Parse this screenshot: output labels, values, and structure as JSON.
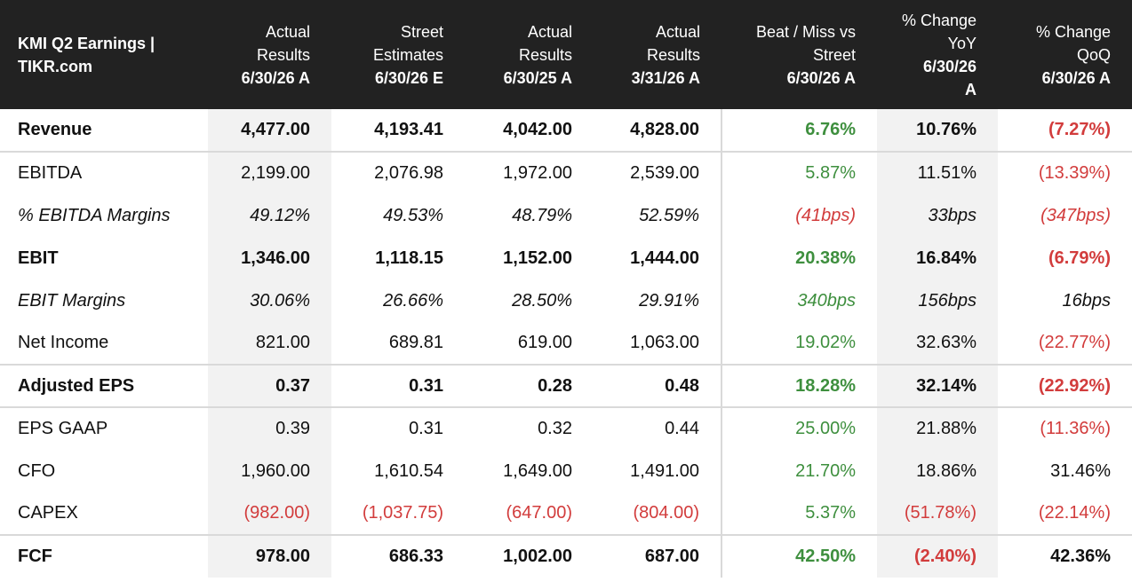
{
  "header": {
    "title_line1": "KMI Q2 Earnings |",
    "title_line2": "TIKR.com",
    "columns": [
      {
        "line1": "Actual",
        "line2": "Results",
        "date": "6/30/26 A"
      },
      {
        "line1": "Street",
        "line2": "Estimates",
        "date": "6/30/26 E"
      },
      {
        "line1": "Actual",
        "line2": "Results",
        "date": "6/30/25 A"
      },
      {
        "line1": "Actual",
        "line2": "Results",
        "date": "3/31/26 A"
      },
      {
        "line1": "Beat / Miss vs",
        "line2": "Street",
        "date": "6/30/26 A"
      },
      {
        "line1": "% Change",
        "line2": "YoY",
        "date": "6/30/26",
        "date2": "A"
      },
      {
        "line1": "% Change",
        "line2": "QoQ",
        "date": "6/30/26 A"
      }
    ]
  },
  "rows": [
    {
      "label": "Revenue",
      "values": [
        "4,477.00",
        "4,193.41",
        "4,042.00",
        "4,828.00",
        "6.76%",
        "10.76%",
        "(7.27%)"
      ]
    },
    {
      "label": "EBITDA",
      "values": [
        "2,199.00",
        "2,076.98",
        "1,972.00",
        "2,539.00",
        "5.87%",
        "11.51%",
        "(13.39%)"
      ]
    },
    {
      "label": "% EBITDA Margins",
      "values": [
        "49.12%",
        "49.53%",
        "48.79%",
        "52.59%",
        "(41bps)",
        "33bps",
        "(347bps)"
      ]
    },
    {
      "label": "EBIT",
      "values": [
        "1,346.00",
        "1,118.15",
        "1,152.00",
        "1,444.00",
        "20.38%",
        "16.84%",
        "(6.79%)"
      ]
    },
    {
      "label": "EBIT Margins",
      "values": [
        "30.06%",
        "26.66%",
        "28.50%",
        "29.91%",
        "340bps",
        "156bps",
        "16bps"
      ]
    },
    {
      "label": "Net Income",
      "values": [
        "821.00",
        "689.81",
        "619.00",
        "1,063.00",
        "19.02%",
        "32.63%",
        "(22.77%)"
      ]
    },
    {
      "label": "Adjusted EPS",
      "values": [
        "0.37",
        "0.31",
        "0.28",
        "0.48",
        "18.28%",
        "32.14%",
        "(22.92%)"
      ]
    },
    {
      "label": "EPS GAAP",
      "values": [
        "0.39",
        "0.31",
        "0.32",
        "0.44",
        "25.00%",
        "21.88%",
        "(11.36%)"
      ]
    },
    {
      "label": "CFO",
      "values": [
        "1,960.00",
        "1,610.54",
        "1,649.00",
        "1,491.00",
        "21.70%",
        "18.86%",
        "31.46%"
      ]
    },
    {
      "label": "CAPEX",
      "values": [
        "(982.00)",
        "(1,037.75)",
        "(647.00)",
        "(804.00)",
        "5.37%",
        "(51.78%)",
        "(22.14%)"
      ]
    },
    {
      "label": "FCF",
      "values": [
        "978.00",
        "686.33",
        "1,002.00",
        "687.00",
        "42.50%",
        "(2.40%)",
        "42.36%"
      ]
    }
  ],
  "colors": {
    "header_bg": "#222222",
    "positive": "#3e8f3e",
    "negative": "#d23c3c",
    "shade": "#f2f2f2"
  }
}
